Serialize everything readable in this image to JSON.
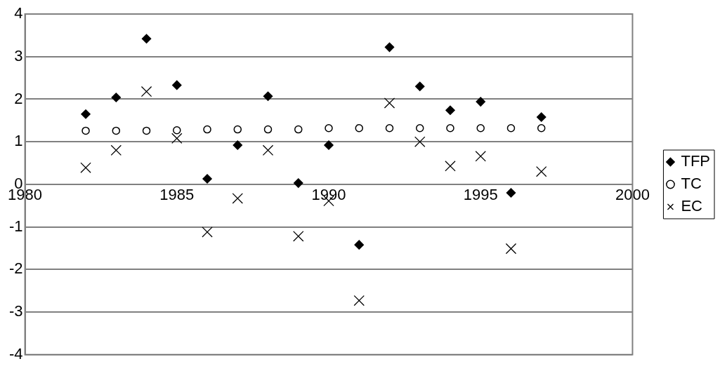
{
  "chart_data": {
    "type": "scatter",
    "x": [
      1982,
      1983,
      1984,
      1985,
      1986,
      1987,
      1988,
      1989,
      1990,
      1991,
      1992,
      1993,
      1994,
      1995,
      1996,
      1997
    ],
    "series": [
      {
        "name": "TFP",
        "color": "#000000",
        "marker": "diamond",
        "values": [
          1.65,
          2.04,
          3.42,
          2.33,
          0.13,
          0.92,
          2.07,
          0.03,
          0.92,
          -1.42,
          3.22,
          2.3,
          1.74,
          1.94,
          -0.2,
          1.58
        ]
      },
      {
        "name": "TC",
        "color": "#000000",
        "marker": "circle",
        "values": [
          1.26,
          1.26,
          1.26,
          1.27,
          1.29,
          1.29,
          1.29,
          1.29,
          1.32,
          1.32,
          1.32,
          1.32,
          1.32,
          1.32,
          1.32,
          1.32
        ]
      },
      {
        "name": "EC",
        "color": "#000000",
        "marker": "cross",
        "values": [
          0.39,
          0.8,
          2.18,
          1.08,
          -1.12,
          -0.33,
          0.8,
          -1.22,
          -0.39,
          -2.73,
          1.91,
          1.0,
          0.43,
          0.66,
          -1.51,
          0.3
        ]
      }
    ],
    "xlim": [
      1980,
      2000
    ],
    "xticks": [
      1980,
      1985,
      1990,
      1995,
      2000
    ],
    "ylim": [
      -4,
      4
    ],
    "yticks": [
      -4,
      -3,
      -2,
      -1,
      0,
      1,
      2,
      3,
      4
    ],
    "grid": "y",
    "legend": "right"
  }
}
